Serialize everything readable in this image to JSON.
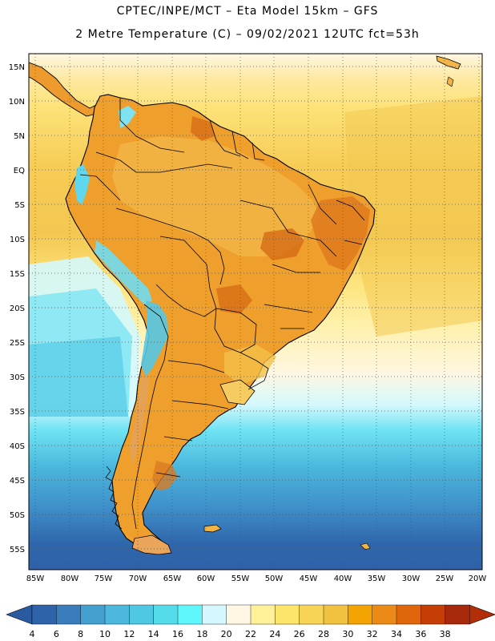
{
  "header": {
    "line1": "CPTEC/INPE/MCT –  Eta Model 15km – GFS",
    "line2": "2 Metre Temperature (C) – 09/02/2021 12UTC fct=53h"
  },
  "axes": {
    "lat_labels": [
      "15N",
      "10N",
      "5N",
      "EQ",
      "5S",
      "10S",
      "15S",
      "20S",
      "25S",
      "30S",
      "35S",
      "40S",
      "45S",
      "50S",
      "55S"
    ],
    "lon_labels": [
      "85W",
      "80W",
      "75W",
      "70W",
      "65W",
      "60W",
      "55W",
      "50W",
      "45W",
      "40W",
      "35W",
      "30W",
      "25W",
      "20W"
    ]
  },
  "colorbar": {
    "labels": [
      "4",
      "6",
      "8",
      "10",
      "12",
      "14",
      "16",
      "18",
      "20",
      "22",
      "24",
      "26",
      "28",
      "30",
      "32",
      "34",
      "36",
      "38"
    ],
    "colors": [
      "#2e63a9",
      "#3a7dbd",
      "#44a0cf",
      "#4db8de",
      "#4fc9e3",
      "#55dceb",
      "#5ff7fb",
      "#d4f8fd",
      "#fff7e3",
      "#fff19a",
      "#fde46a",
      "#f7d356",
      "#f1c240",
      "#f3a400",
      "#eb8a16",
      "#e0660b",
      "#c53e06",
      "#a5290a"
    ],
    "left_arrow_color": "#2a5a9f",
    "right_arrow_color": "#b32e08"
  },
  "map": {
    "ocean_colors": [
      "#fff7e3",
      "#fde37a",
      "#f6cc55",
      "#d4f8fd",
      "#5fdcf0",
      "#4bb8dd",
      "#3f8fc9",
      "#2f66ab"
    ],
    "land_colors": [
      "#f2b548",
      "#eda52e",
      "#e07a1d",
      "#c96616",
      "#5fd2eb"
    ],
    "border_color": "#000000"
  }
}
